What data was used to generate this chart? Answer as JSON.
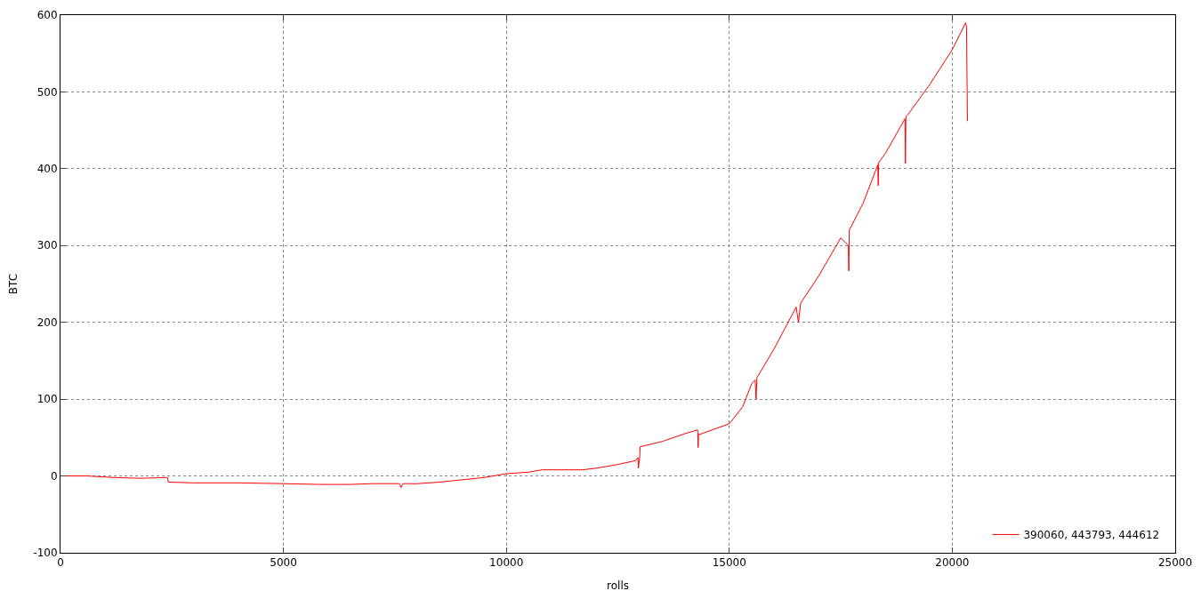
{
  "chart_data": {
    "type": "line",
    "xlabel": "rolls",
    "ylabel": "BTC",
    "xlim": [
      0,
      25000
    ],
    "ylim": [
      -100,
      600
    ],
    "xticks": [
      0,
      5000,
      10000,
      15000,
      20000,
      25000
    ],
    "yticks": [
      -100,
      0,
      100,
      200,
      300,
      400,
      500,
      600
    ],
    "grid": true,
    "legend": "bottom right",
    "marker": "none",
    "line_style": "solid",
    "series": [
      {
        "name": "390060, 443793, 444612",
        "color": "#ff0000",
        "x": [
          0,
          600,
          1200,
          1800,
          2400,
          2420,
          3000,
          4000,
          5000,
          5800,
          6500,
          7000,
          7600,
          7640,
          7680,
          8000,
          8500,
          9000,
          9500,
          10000,
          10500,
          10800,
          11700,
          12000,
          12500,
          12900,
          12950,
          12960,
          12990,
          13000,
          13500,
          14000,
          14290,
          14300,
          14310,
          14330,
          15000,
          15300,
          15500,
          15580,
          15600,
          15620,
          16000,
          16500,
          16550,
          16600,
          17000,
          17500,
          17670,
          17680,
          17690,
          18000,
          18330,
          18340,
          18350,
          18500,
          18940,
          18950,
          18960,
          19000,
          19500,
          20000,
          20300,
          20320,
          20340
        ],
        "values": [
          0,
          0,
          -2,
          -3,
          -2,
          -8,
          -9,
          -9,
          -10,
          -11,
          -11,
          -10,
          -10,
          -15,
          -10,
          -10,
          -8,
          -5,
          -2,
          3,
          5,
          8,
          8,
          10,
          15,
          20,
          24,
          10,
          24,
          38,
          45,
          55,
          60,
          37,
          55,
          54,
          68,
          90,
          120,
          125,
          100,
          128,
          165,
          220,
          200,
          225,
          260,
          310,
          300,
          267,
          320,
          355,
          405,
          378,
          408,
          420,
          465,
          407,
          468,
          470,
          510,
          555,
          590,
          585,
          462
        ]
      }
    ]
  }
}
